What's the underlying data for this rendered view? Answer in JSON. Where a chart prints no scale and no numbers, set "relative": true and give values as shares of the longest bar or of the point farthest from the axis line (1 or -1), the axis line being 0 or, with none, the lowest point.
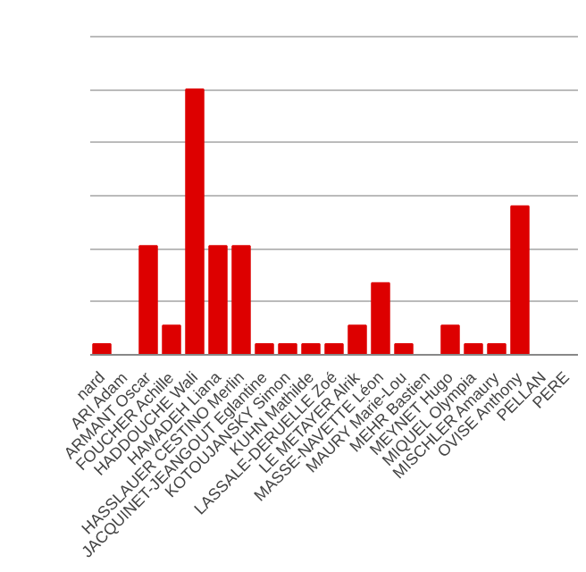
{
  "chart_data": {
    "type": "bar",
    "relative": true,
    "grid": "y",
    "color": "#dd0000",
    "categories": [
      "nard",
      "ARI Adam",
      "ARMANT Oscar",
      "FOUCHER Achille",
      "HADDOUCHE Wali",
      "HAMADEH Liana",
      "HASSLAUER CESTINO Merlin",
      "JACQUINET-JEANGOUT Eglantine",
      "KOTOUJANSKY Simon",
      "KUHN Mathilde",
      "LASSALE-DERUELLE Zoé",
      "LE METAYER Alrik",
      "MASSE-NAVETTE Léon",
      "MAURY Marie-Lou",
      "MEHR Bastien",
      "MEYNET Hugo",
      "MIQUEL Olympia",
      "MISCHLER Amaury",
      "OVISE Anthony",
      "PELLAN",
      "PERE"
    ],
    "values": [
      0.04,
      0,
      0.41,
      0.11,
      1,
      0.41,
      0.41,
      0.04,
      0.04,
      0.04,
      0.04,
      0.11,
      0.27,
      0.04,
      0,
      0.11,
      0.04,
      0.04,
      0.56,
      null,
      null
    ]
  }
}
